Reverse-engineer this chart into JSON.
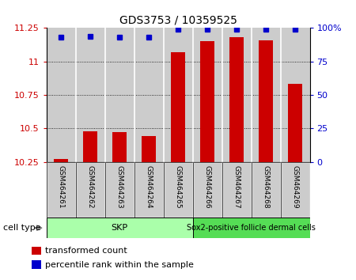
{
  "title": "GDS3753 / 10359525",
  "samples": [
    "GSM464261",
    "GSM464262",
    "GSM464263",
    "GSM464264",
    "GSM464265",
    "GSM464266",
    "GSM464267",
    "GSM464268",
    "GSM464269"
  ],
  "transformed_counts": [
    10.27,
    10.48,
    10.47,
    10.44,
    11.07,
    11.15,
    11.18,
    11.16,
    10.83
  ],
  "percentile_ranks": [
    93,
    94,
    93,
    93,
    99,
    99,
    99,
    99,
    99
  ],
  "ylim_left": [
    10.25,
    11.25
  ],
  "ylim_right": [
    0,
    100
  ],
  "yticks_left": [
    10.25,
    10.5,
    10.75,
    11.0,
    11.25
  ],
  "yticks_right": [
    0,
    25,
    50,
    75,
    100
  ],
  "ytick_labels_left": [
    "10.25",
    "10.5",
    "10.75",
    "11",
    "11.25"
  ],
  "ytick_labels_right": [
    "0",
    "25",
    "50",
    "75",
    "100%"
  ],
  "bar_color": "#CC0000",
  "dot_color": "#0000CC",
  "bar_width": 0.5,
  "sample_bg_color": "#cccccc",
  "skp_color": "#aaffaa",
  "sox2_color": "#55dd55",
  "skp_count": 5,
  "sox2_count": 4,
  "skp_label": "SKP",
  "sox2_label": "Sox2-positive follicle dermal cells",
  "cell_type_label": "cell type",
  "legend_items": [
    {
      "label": "transformed count",
      "color": "#CC0000"
    },
    {
      "label": "percentile rank within the sample",
      "color": "#0000CC"
    }
  ]
}
